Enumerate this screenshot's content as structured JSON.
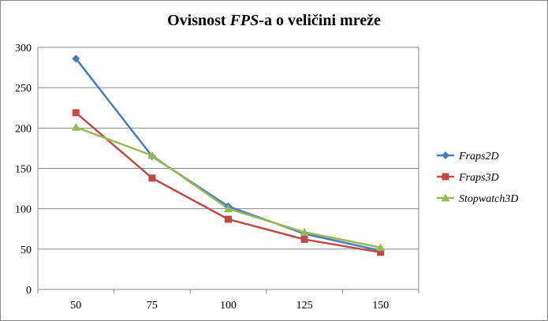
{
  "chart_data": {
    "type": "line",
    "title_parts": [
      "Ovisnost ",
      "FPS",
      "-a o veličini mreže"
    ],
    "categories": [
      "50",
      "75",
      "100",
      "125",
      "150"
    ],
    "ylim": [
      0,
      300
    ],
    "yticks": [
      "0",
      "50",
      "100",
      "150",
      "200",
      "250",
      "300"
    ],
    "grid": "horizontal",
    "legend_position": "right",
    "series": [
      {
        "name": "Fraps2D",
        "color": "#4a7ebb",
        "marker": "diamond",
        "values": [
          286,
          165,
          103,
          69,
          48
        ]
      },
      {
        "name": "Fraps3D",
        "color": "#be4b48",
        "marker": "square",
        "values": [
          219,
          138,
          87,
          62,
          46
        ]
      },
      {
        "name": "Stopwatch3D",
        "color": "#98b954",
        "marker": "triangle",
        "values": [
          201,
          166,
          100,
          71,
          52
        ]
      }
    ]
  }
}
